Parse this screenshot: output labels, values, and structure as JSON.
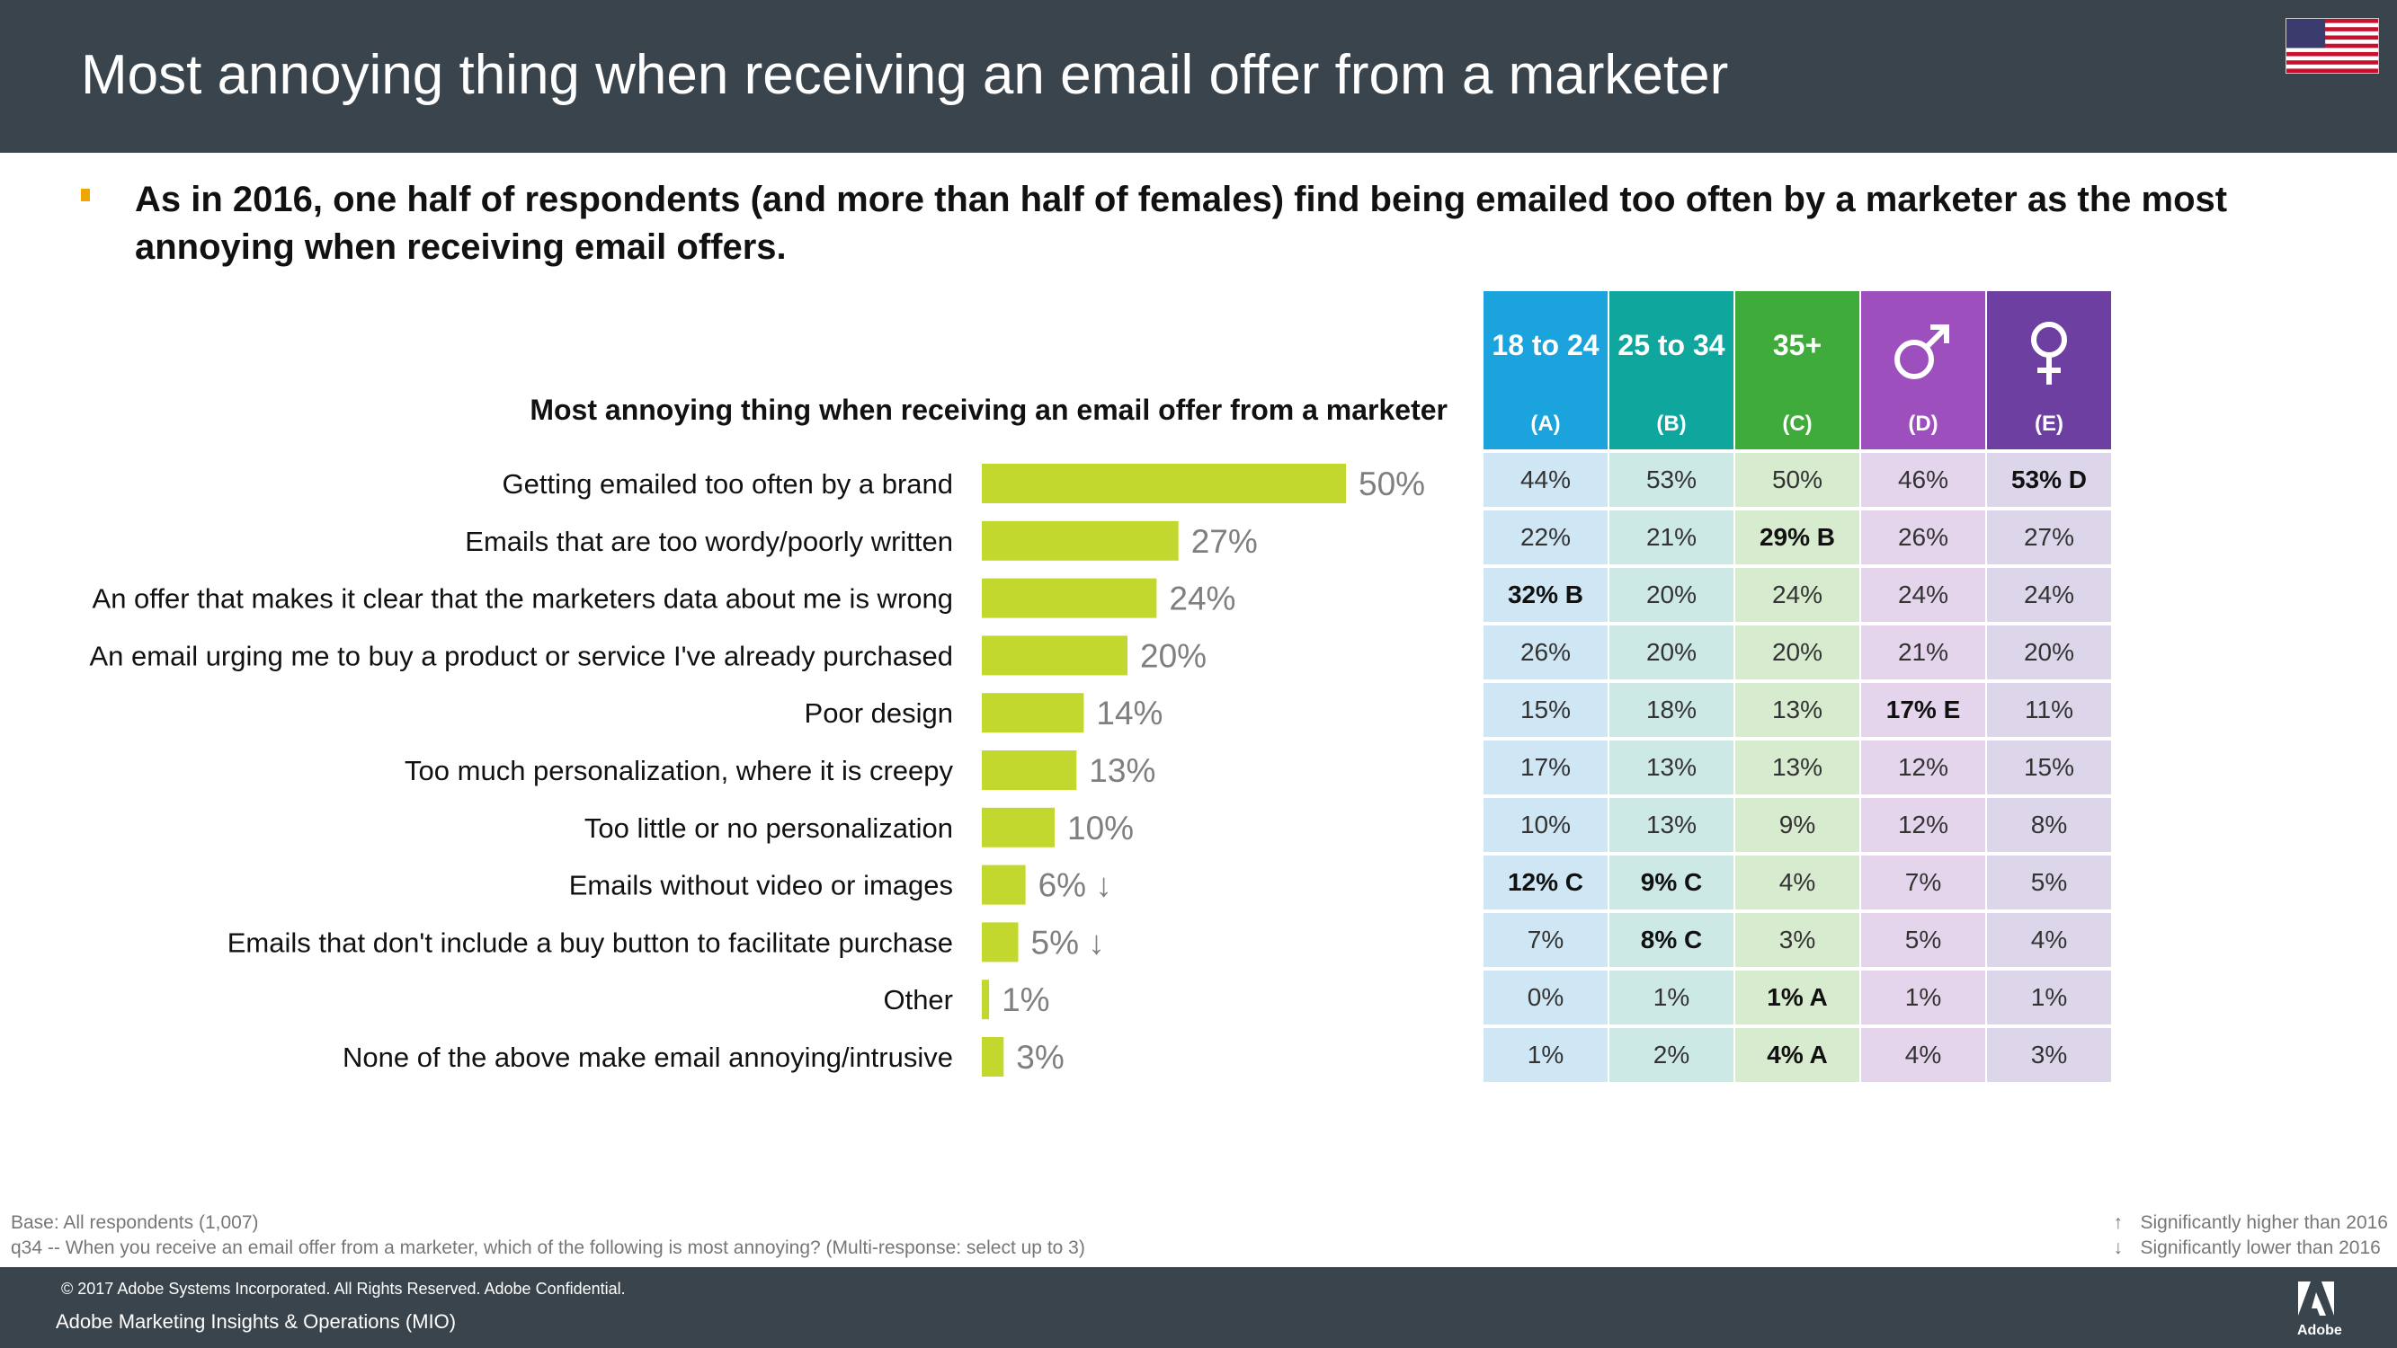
{
  "header": {
    "title": "Most annoying thing when receiving an email offer from a marketer"
  },
  "bullet": "As in 2016, one half of respondents (and more than half of females) find being emailed too often by a marketer as the most annoying when receiving email offers.",
  "chart_data": {
    "type": "bar",
    "orientation": "horizontal",
    "title": "Most annoying thing when receiving an email offer from a marketer",
    "categories": [
      "Getting emailed too often by a brand",
      "Emails that are too wordy/poorly written",
      "An offer that makes it clear that the marketers data about me is wrong",
      "An email urging me to buy a product or service I've already purchased",
      "Poor design",
      "Too much personalization, where it is creepy",
      "Too little or no personalization",
      "Emails without video or images",
      "Emails that don't include a buy button to facilitate purchase",
      "Other",
      "None of the above make email annoying/intrusive"
    ],
    "values": [
      50,
      27,
      24,
      20,
      14,
      13,
      10,
      6,
      5,
      1,
      3
    ],
    "value_labels": [
      "50%",
      "27%",
      "24%",
      "20%",
      "14%",
      "13%",
      "10%",
      "6%",
      "5%",
      "1%",
      "3%"
    ],
    "trend_markers": [
      "",
      "",
      "",
      "",
      "",
      "",
      "",
      "↓",
      "↓",
      "",
      ""
    ],
    "xlim": [
      0,
      100
    ],
    "bar_color": "#c2d82e",
    "xlabel": "",
    "ylabel": ""
  },
  "table": {
    "columns": [
      {
        "label": "18 to 24",
        "letter": "(A)",
        "icon": "",
        "header_color": "#1aa3dd",
        "cell_color": "#cfe7f4"
      },
      {
        "label": "25 to 34",
        "letter": "(B)",
        "icon": "",
        "header_color": "#0fa69d",
        "cell_color": "#cce9e6"
      },
      {
        "label": "35+",
        "letter": "(C)",
        "icon": "",
        "header_color": "#3fab3a",
        "cell_color": "#d7ebcf"
      },
      {
        "label": "",
        "letter": "(D)",
        "icon": "male-symbol-icon",
        "header_color": "#9e4fbe",
        "cell_color": "#e5d5ec"
      },
      {
        "label": "",
        "letter": "(E)",
        "icon": "female-symbol-icon",
        "header_color": "#6d3fa1",
        "cell_color": "#ddd6eb"
      }
    ],
    "rows": [
      [
        "44%",
        "53%",
        "50%",
        "46%",
        "53% D"
      ],
      [
        "22%",
        "21%",
        "29% B",
        "26%",
        "27%"
      ],
      [
        "32% B",
        "20%",
        "24%",
        "24%",
        "24%"
      ],
      [
        "26%",
        "20%",
        "20%",
        "21%",
        "20%"
      ],
      [
        "15%",
        "18%",
        "13%",
        "17% E",
        "11%"
      ],
      [
        "17%",
        "13%",
        "13%",
        "12%",
        "15%"
      ],
      [
        "10%",
        "13%",
        "9%",
        "12%",
        "8%"
      ],
      [
        "12% C",
        "9% C",
        "4%",
        "7%",
        "5%"
      ],
      [
        "7%",
        "8% C",
        "3%",
        "5%",
        "4%"
      ],
      [
        "0%",
        "1%",
        "1% A",
        "1%",
        "1%"
      ],
      [
        "1%",
        "2%",
        "4% A",
        "4%",
        "3%"
      ]
    ]
  },
  "notes": {
    "base": "Base: All respondents (1,007)",
    "question": "q34 -- When you receive an email offer from a marketer, which of the following is most annoying? (Multi-response: select up to 3)"
  },
  "legend": {
    "up_arrow": "↑",
    "up_text": "Significantly higher than 2016",
    "down_arrow": "↓",
    "down_text": "Significantly lower than 2016"
  },
  "footer": {
    "copyright": "© 2017 Adobe Systems Incorporated.  All Rights Reserved.  Adobe Confidential.",
    "department": "Adobe Marketing Insights & Operations (MIO)",
    "brand": "Adobe"
  },
  "colors": {
    "header_bg": "#39444c",
    "bullet": "#f0a500"
  }
}
